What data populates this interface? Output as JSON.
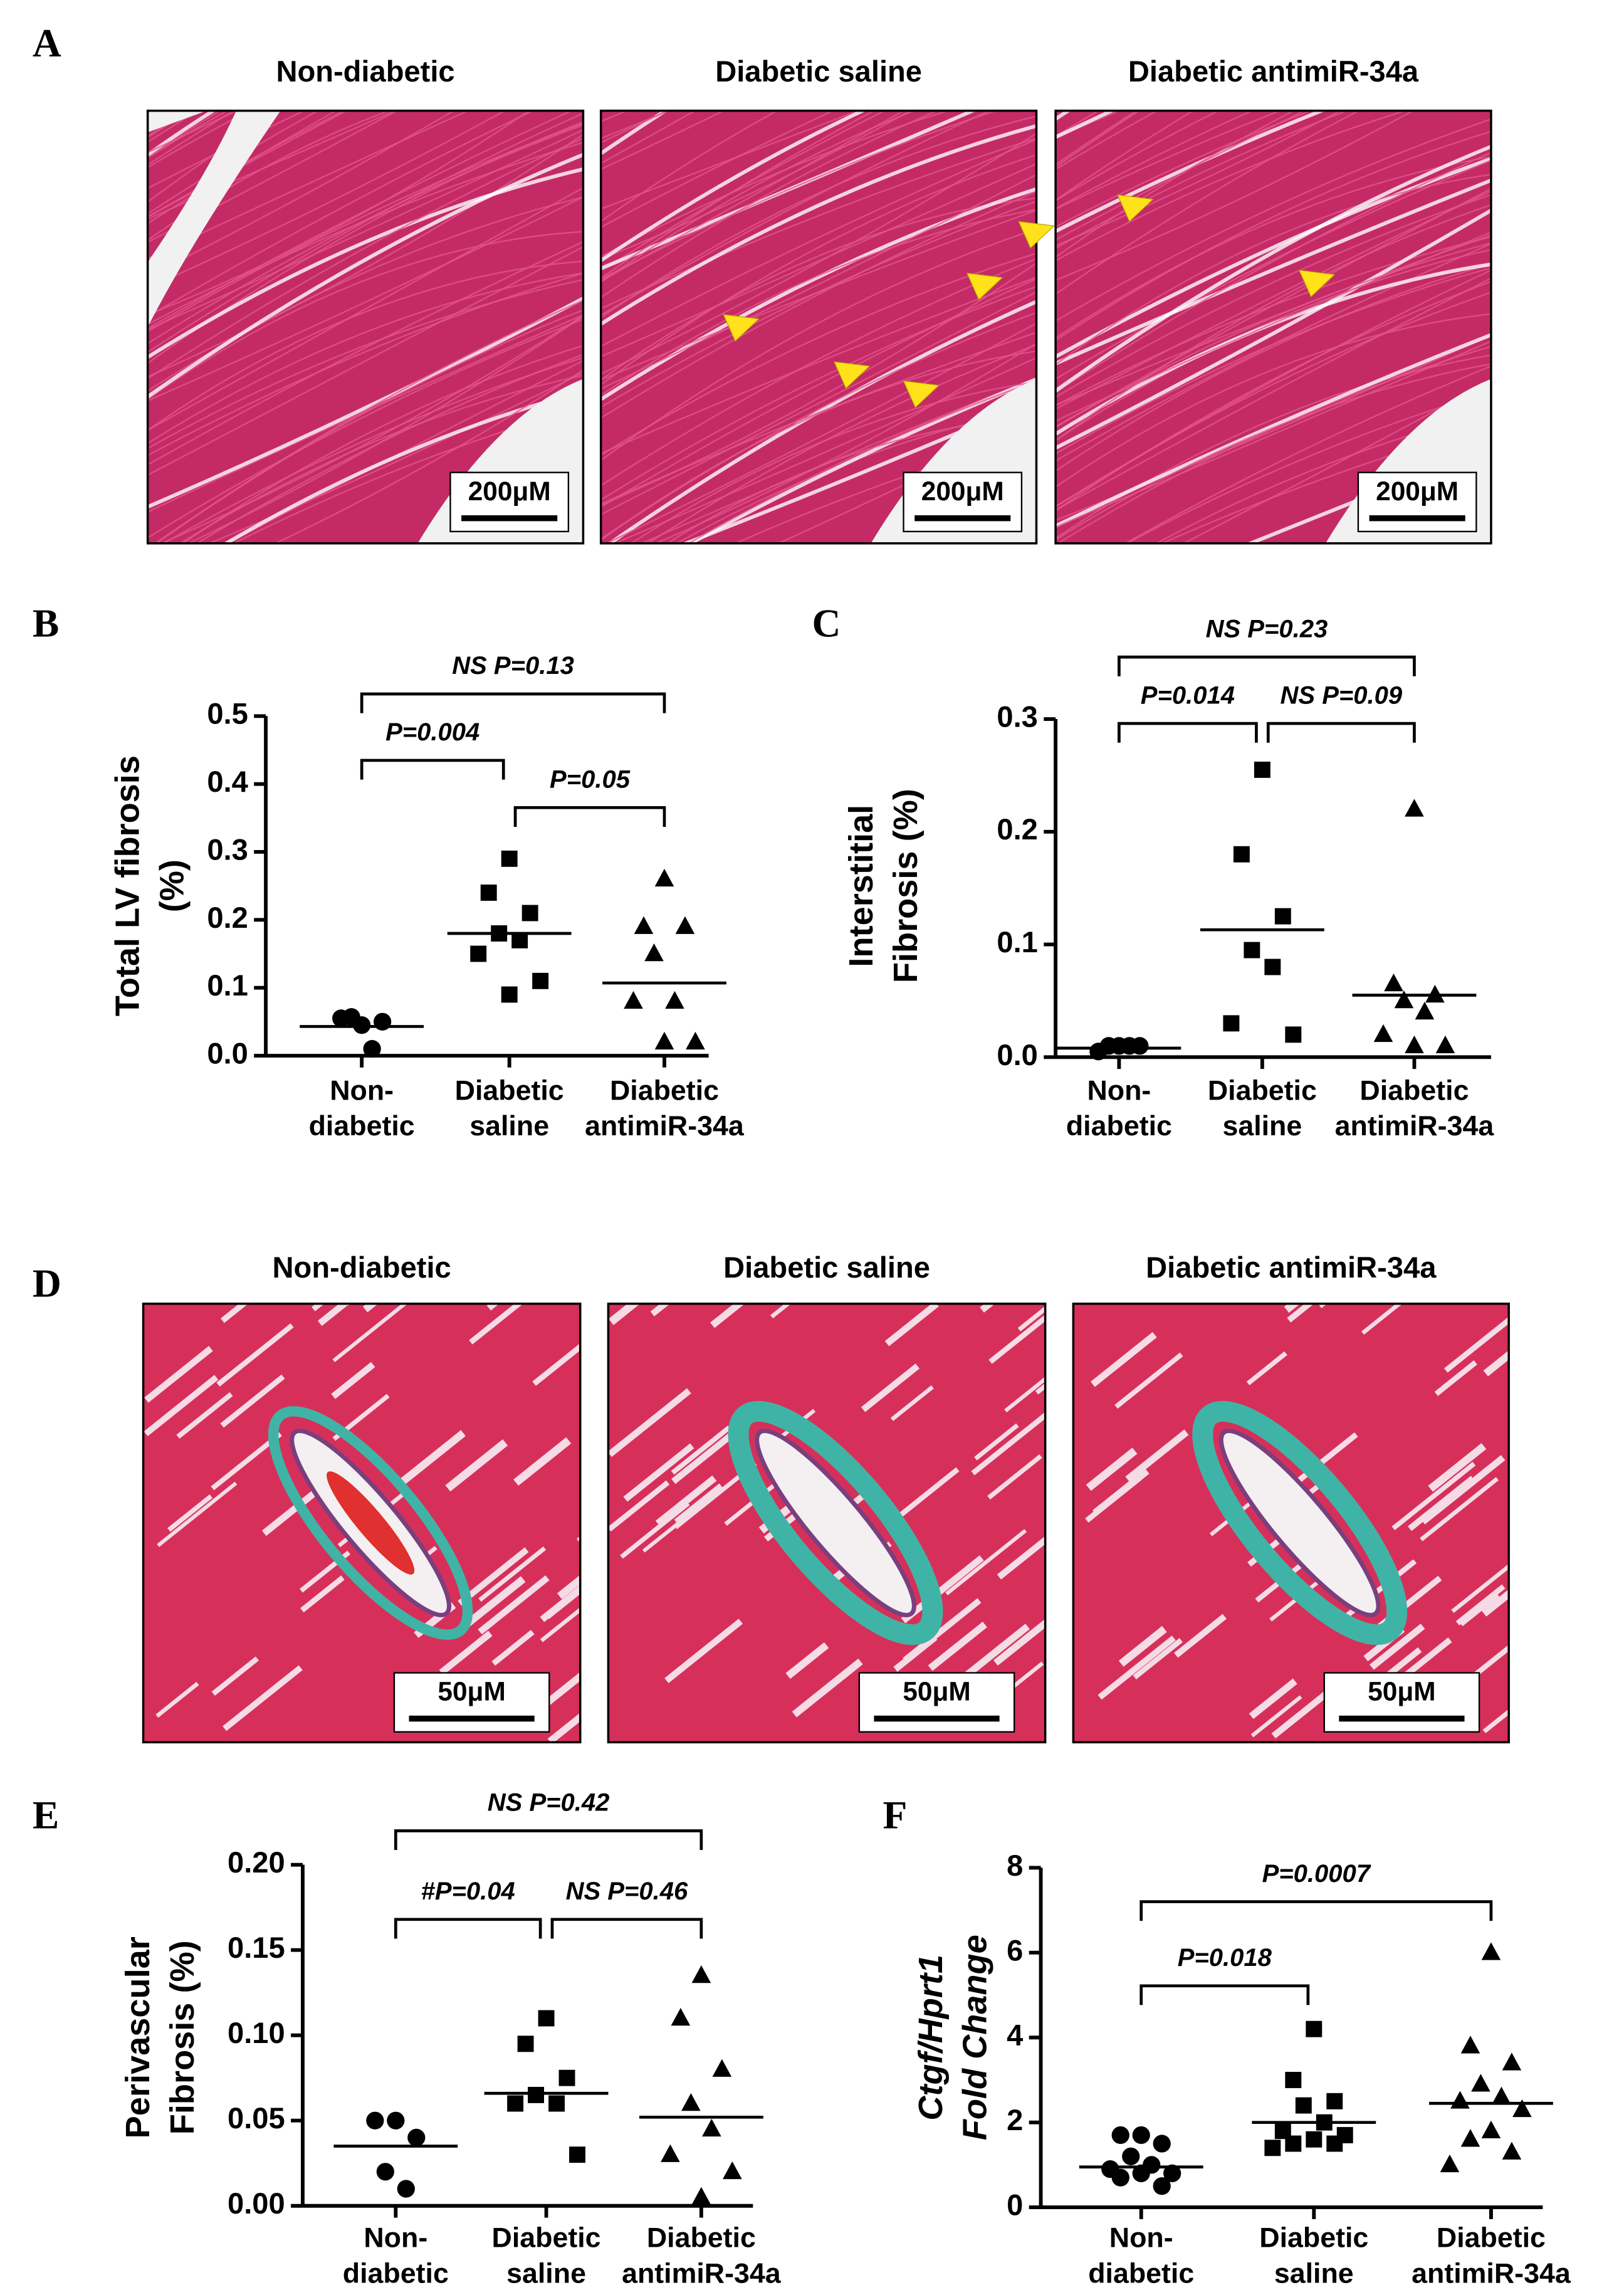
{
  "figure": {
    "A": {
      "label": "A",
      "titles": [
        "Non-diabetic",
        "Diabetic saline",
        "Diabetic antimiR-34a"
      ],
      "scale_bar": "200μM"
    },
    "D": {
      "label": "D",
      "titles": [
        "Non-diabetic",
        "Diabetic saline",
        "Diabetic antimiR-34a"
      ],
      "scale_bar": "50μM"
    }
  },
  "chart_data": [
    {
      "type": "dot",
      "label": "B",
      "ylabel": [
        "Total LV fibrosis",
        "(%)"
      ],
      "categories": [
        [
          "Non-",
          "diabetic"
        ],
        [
          "Diabetic",
          "saline"
        ],
        [
          "Diabetic",
          "antimiR-34a"
        ]
      ],
      "markers": [
        "circle",
        "square",
        "triangle"
      ],
      "color": "#000000",
      "points": [
        [
          0.045,
          0.055,
          0.05,
          0.057,
          0.01
        ],
        [
          0.29,
          0.24,
          0.21,
          0.18,
          0.17,
          0.15,
          0.11,
          0.09
        ],
        [
          0.26,
          0.19,
          0.19,
          0.15,
          0.08,
          0.08,
          0.02,
          0.02
        ]
      ],
      "means": [
        0.043,
        0.18,
        0.107
      ],
      "ylim": [
        0,
        0.5
      ],
      "yticks": [
        {
          "value": 0,
          "label": "0.0"
        },
        0.1,
        0.2,
        0.3,
        0.4,
        0.5
      ],
      "annotations": [
        "NS P=0.13",
        "P=0.004",
        "P=0.05"
      ]
    },
    {
      "type": "dot",
      "label": "C",
      "ylabel": [
        "Interstitial",
        "Fibrosis (%)"
      ],
      "categories": [
        [
          "Non-",
          "diabetic"
        ],
        [
          "Diabetic",
          "saline"
        ],
        [
          "Diabetic",
          "antimiR-34a"
        ]
      ],
      "markers": [
        "circle",
        "square",
        "triangle"
      ],
      "color": "#000000",
      "points": [
        [
          0.01,
          0.005,
          0.01,
          0.01,
          0.01
        ],
        [
          0.255,
          0.18,
          0.125,
          0.095,
          0.08,
          0.03,
          0.02
        ],
        [
          0.22,
          0.065,
          0.055,
          0.05,
          0.04,
          0.02,
          0.01,
          0.01
        ]
      ],
      "means": [
        0.008,
        0.113,
        0.055
      ],
      "ylim": [
        0,
        0.3
      ],
      "yticks": [
        {
          "value": 0,
          "label": "0.0"
        },
        0.1,
        0.2,
        0.3
      ],
      "annotations": [
        "NS P=0.23",
        "P=0.014",
        "NS P=0.09"
      ]
    },
    {
      "type": "dot",
      "label": "E",
      "ylabel": [
        "Perivascular",
        "Fibrosis (%)"
      ],
      "categories": [
        [
          "Non-",
          "diabetic"
        ],
        [
          "Diabetic",
          "saline"
        ],
        [
          "Diabetic",
          "antimiR-34a"
        ]
      ],
      "markers": [
        "circle",
        "square",
        "triangle"
      ],
      "color": "#000000",
      "points": [
        [
          0.05,
          0.05,
          0.04,
          0.02,
          0.01
        ],
        [
          0.11,
          0.095,
          0.075,
          0.065,
          0.06,
          0.06,
          0.03
        ],
        [
          0.135,
          0.11,
          0.08,
          0.06,
          0.045,
          0.03,
          0.02,
          0.005
        ]
      ],
      "means": [
        0.035,
        0.066,
        0.052
      ],
      "ylim": [
        0,
        0.2
      ],
      "yticks": [
        {
          "value": 0,
          "label": "0.00"
        },
        0.05,
        {
          "value": 0.1,
          "label": "0.10"
        },
        0.15,
        {
          "value": 0.2,
          "label": "0.20"
        }
      ],
      "annotations": [
        "NS P=0.42",
        "#P=0.04",
        "NS P=0.46"
      ]
    },
    {
      "type": "dot",
      "label": "F",
      "ylabel": [
        "Ctgf/Hprt1",
        "Fold Change"
      ],
      "ylabel_style": "italic",
      "categories": [
        [
          "Non-",
          "diabetic"
        ],
        [
          "Diabetic",
          "saline"
        ],
        [
          "Diabetic",
          "antimiR-34a"
        ]
      ],
      "markers": [
        "circle",
        "square",
        "triangle"
      ],
      "color": "#000000",
      "points": [
        [
          1.7,
          1.7,
          1.5,
          1.2,
          1.0,
          0.9,
          0.8,
          0.8,
          0.7,
          0.5
        ],
        [
          4.2,
          3.0,
          2.5,
          2.4,
          2.0,
          1.8,
          1.7,
          1.6,
          1.5,
          1.5,
          1.4
        ],
        [
          6.0,
          3.8,
          3.4,
          2.9,
          2.6,
          2.5,
          2.3,
          1.8,
          1.6,
          1.3,
          1.0
        ]
      ],
      "means": [
        0.95,
        2.0,
        2.45
      ],
      "ylim": [
        0,
        8
      ],
      "yticks": [
        0,
        2,
        4,
        6,
        8
      ],
      "annotations": [
        "P=0.0007",
        "P=0.018"
      ]
    }
  ]
}
